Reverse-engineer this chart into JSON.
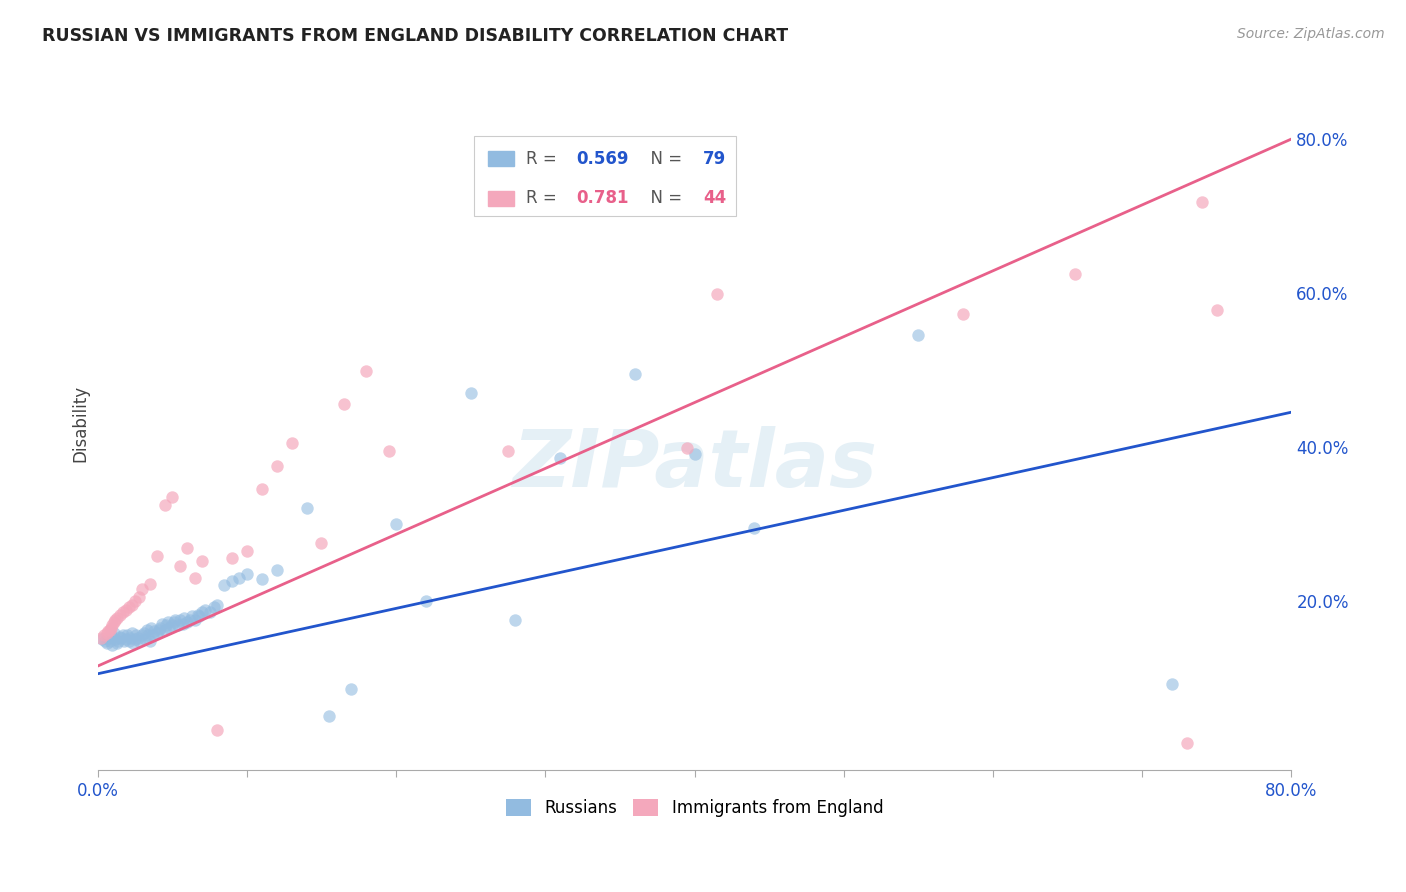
{
  "title": "RUSSIAN VS IMMIGRANTS FROM ENGLAND DISABILITY CORRELATION CHART",
  "source": "Source: ZipAtlas.com",
  "ylabel": "Disability",
  "xlim": [
    0.0,
    0.8
  ],
  "ylim": [
    -0.02,
    0.88
  ],
  "xticks": [
    0.0,
    0.1,
    0.2,
    0.3,
    0.4,
    0.5,
    0.6,
    0.7,
    0.8
  ],
  "xticklabels": [
    "0.0%",
    "",
    "",
    "",
    "",
    "",
    "",
    "",
    "80.0%"
  ],
  "ytick_positions": [
    0.2,
    0.4,
    0.6,
    0.8
  ],
  "ytick_labels": [
    "20.0%",
    "40.0%",
    "60.0%",
    "80.0%"
  ],
  "blue_R": 0.569,
  "blue_N": 79,
  "pink_R": 0.781,
  "pink_N": 44,
  "blue_color": "#92BBE0",
  "pink_color": "#F4A8BC",
  "blue_line_color": "#2255CC",
  "pink_line_color": "#E8608A",
  "watermark": "ZIPatlas",
  "blue_scatter_x": [
    0.003,
    0.005,
    0.006,
    0.007,
    0.008,
    0.009,
    0.01,
    0.011,
    0.012,
    0.013,
    0.014,
    0.015,
    0.016,
    0.017,
    0.018,
    0.019,
    0.02,
    0.021,
    0.022,
    0.023,
    0.024,
    0.025,
    0.026,
    0.027,
    0.028,
    0.03,
    0.031,
    0.032,
    0.033,
    0.034,
    0.035,
    0.036,
    0.037,
    0.038,
    0.04,
    0.041,
    0.042,
    0.043,
    0.045,
    0.046,
    0.047,
    0.048,
    0.05,
    0.051,
    0.052,
    0.054,
    0.055,
    0.057,
    0.058,
    0.06,
    0.062,
    0.063,
    0.065,
    0.067,
    0.068,
    0.07,
    0.072,
    0.075,
    0.078,
    0.08,
    0.085,
    0.09,
    0.095,
    0.1,
    0.11,
    0.12,
    0.14,
    0.155,
    0.17,
    0.2,
    0.22,
    0.25,
    0.28,
    0.31,
    0.36,
    0.4,
    0.44,
    0.55,
    0.72
  ],
  "blue_scatter_y": [
    0.15,
    0.148,
    0.145,
    0.152,
    0.147,
    0.155,
    0.142,
    0.158,
    0.15,
    0.145,
    0.148,
    0.153,
    0.151,
    0.155,
    0.147,
    0.15,
    0.155,
    0.148,
    0.152,
    0.158,
    0.145,
    0.15,
    0.155,
    0.152,
    0.148,
    0.155,
    0.158,
    0.15,
    0.162,
    0.155,
    0.148,
    0.165,
    0.155,
    0.16,
    0.158,
    0.162,
    0.165,
    0.17,
    0.162,
    0.168,
    0.172,
    0.165,
    0.168,
    0.172,
    0.175,
    0.168,
    0.175,
    0.17,
    0.178,
    0.172,
    0.175,
    0.18,
    0.175,
    0.182,
    0.18,
    0.185,
    0.188,
    0.185,
    0.192,
    0.195,
    0.22,
    0.225,
    0.23,
    0.235,
    0.228,
    0.24,
    0.32,
    0.05,
    0.085,
    0.3,
    0.2,
    0.47,
    0.175,
    0.385,
    0.495,
    0.39,
    0.295,
    0.545,
    0.092
  ],
  "pink_scatter_x": [
    0.002,
    0.004,
    0.006,
    0.007,
    0.008,
    0.009,
    0.01,
    0.011,
    0.012,
    0.013,
    0.015,
    0.017,
    0.019,
    0.021,
    0.023,
    0.025,
    0.028,
    0.03,
    0.035,
    0.04,
    0.045,
    0.05,
    0.055,
    0.06,
    0.065,
    0.07,
    0.08,
    0.09,
    0.1,
    0.11,
    0.12,
    0.13,
    0.15,
    0.165,
    0.18,
    0.195,
    0.275,
    0.395,
    0.415,
    0.58,
    0.655,
    0.73,
    0.74,
    0.75
  ],
  "pink_scatter_y": [
    0.152,
    0.155,
    0.158,
    0.16,
    0.162,
    0.165,
    0.168,
    0.172,
    0.175,
    0.178,
    0.182,
    0.185,
    0.188,
    0.192,
    0.195,
    0.2,
    0.205,
    0.215,
    0.222,
    0.258,
    0.325,
    0.335,
    0.245,
    0.268,
    0.23,
    0.252,
    0.032,
    0.255,
    0.265,
    0.345,
    0.375,
    0.405,
    0.275,
    0.455,
    0.498,
    0.395,
    0.395,
    0.398,
    0.598,
    0.572,
    0.625,
    0.015,
    0.718,
    0.578
  ],
  "blue_trend_x": [
    0.0,
    0.8
  ],
  "blue_trend_y": [
    0.105,
    0.445
  ],
  "pink_trend_x": [
    0.0,
    0.8
  ],
  "pink_trend_y": [
    0.115,
    0.8
  ]
}
